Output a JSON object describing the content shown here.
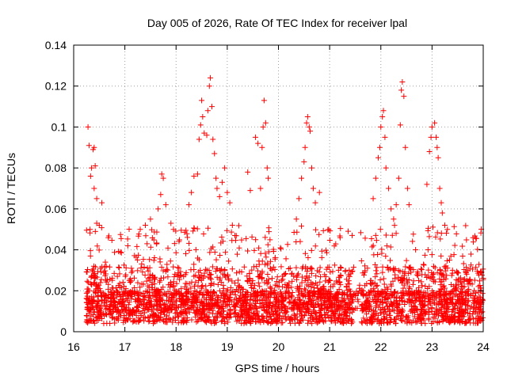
{
  "chart_data": {
    "type": "scatter",
    "title": "Day 005 of 2026, Rate Of TEC Index for receiver lpal",
    "xlabel": "GPS time / hours",
    "ylabel": "ROTI / TECUs",
    "xlim": [
      16,
      24
    ],
    "ylim": [
      0,
      0.14
    ],
    "x_ticks": [
      "16",
      "17",
      "18",
      "19",
      "20",
      "21",
      "22",
      "23",
      "24"
    ],
    "y_ticks": [
      "0",
      "0.02",
      "0.04",
      "0.06",
      "0.08",
      "0.1",
      "0.12",
      "0.14"
    ],
    "grid": true,
    "marker": "+",
    "marker_color": "#ff0000",
    "series": [
      {
        "name": "ROTI",
        "points": [
          [
            16.28,
            0.1
          ],
          [
            16.3,
            0.091
          ],
          [
            16.33,
            0.076
          ],
          [
            16.38,
            0.089
          ],
          [
            16.4,
            0.09
          ],
          [
            16.42,
            0.081
          ],
          [
            16.35,
            0.08
          ],
          [
            16.4,
            0.07
          ],
          [
            16.45,
            0.065
          ],
          [
            16.5,
            0.052
          ],
          [
            16.55,
            0.063
          ],
          [
            16.32,
            0.05
          ],
          [
            16.45,
            0.053
          ],
          [
            17.3,
            0.05
          ],
          [
            17.4,
            0.052
          ],
          [
            17.5,
            0.055
          ],
          [
            17.65,
            0.06
          ],
          [
            17.7,
            0.067
          ],
          [
            17.72,
            0.077
          ],
          [
            17.75,
            0.075
          ],
          [
            17.8,
            0.062
          ],
          [
            17.9,
            0.053
          ],
          [
            17.95,
            0.05
          ],
          [
            18.25,
            0.062
          ],
          [
            18.3,
            0.068
          ],
          [
            18.35,
            0.076
          ],
          [
            18.42,
            0.077
          ],
          [
            18.45,
            0.094
          ],
          [
            18.48,
            0.101
          ],
          [
            18.5,
            0.113
          ],
          [
            18.52,
            0.105
          ],
          [
            18.55,
            0.097
          ],
          [
            18.6,
            0.096
          ],
          [
            18.62,
            0.108
          ],
          [
            18.65,
            0.12
          ],
          [
            18.67,
            0.124
          ],
          [
            18.7,
            0.11
          ],
          [
            18.72,
            0.094
          ],
          [
            18.75,
            0.087
          ],
          [
            18.78,
            0.075
          ],
          [
            18.8,
            0.07
          ],
          [
            18.85,
            0.066
          ],
          [
            18.9,
            0.073
          ],
          [
            18.95,
            0.08
          ],
          [
            19.0,
            0.068
          ],
          [
            19.05,
            0.063
          ],
          [
            19.1,
            0.052
          ],
          [
            19.15,
            0.047
          ],
          [
            19.4,
            0.078
          ],
          [
            19.45,
            0.069
          ],
          [
            19.55,
            0.095
          ],
          [
            19.6,
            0.092
          ],
          [
            19.65,
            0.07
          ],
          [
            19.68,
            0.09
          ],
          [
            19.7,
            0.1
          ],
          [
            19.72,
            0.113
          ],
          [
            19.75,
            0.102
          ],
          [
            19.78,
            0.08
          ],
          [
            19.8,
            0.075
          ],
          [
            20.35,
            0.055
          ],
          [
            20.4,
            0.065
          ],
          [
            20.45,
            0.075
          ],
          [
            20.5,
            0.083
          ],
          [
            20.52,
            0.09
          ],
          [
            20.55,
            0.102
          ],
          [
            20.57,
            0.105
          ],
          [
            20.6,
            0.1
          ],
          [
            20.62,
            0.098
          ],
          [
            20.65,
            0.08
          ],
          [
            20.68,
            0.07
          ],
          [
            20.72,
            0.063
          ],
          [
            20.8,
            0.068
          ],
          [
            21.85,
            0.065
          ],
          [
            21.9,
            0.075
          ],
          [
            21.95,
            0.085
          ],
          [
            21.98,
            0.09
          ],
          [
            22.0,
            0.1
          ],
          [
            22.03,
            0.105
          ],
          [
            22.05,
            0.108
          ],
          [
            22.08,
            0.095
          ],
          [
            22.1,
            0.08
          ],
          [
            22.15,
            0.07
          ],
          [
            22.2,
            0.06
          ],
          [
            22.25,
            0.055
          ],
          [
            22.3,
            0.062
          ],
          [
            22.35,
            0.075
          ],
          [
            22.38,
            0.101
          ],
          [
            22.4,
            0.118
          ],
          [
            22.42,
            0.122
          ],
          [
            22.45,
            0.115
          ],
          [
            22.48,
            0.09
          ],
          [
            22.52,
            0.07
          ],
          [
            22.55,
            0.062
          ],
          [
            22.9,
            0.072
          ],
          [
            22.95,
            0.088
          ],
          [
            22.98,
            0.095
          ],
          [
            23.0,
            0.1
          ],
          [
            23.05,
            0.102
          ],
          [
            23.08,
            0.095
          ],
          [
            23.1,
            0.09
          ],
          [
            23.12,
            0.085
          ],
          [
            23.15,
            0.07
          ],
          [
            23.18,
            0.063
          ],
          [
            23.2,
            0.058
          ],
          [
            23.25,
            0.052
          ],
          [
            23.3,
            0.05
          ]
        ]
      }
    ]
  }
}
